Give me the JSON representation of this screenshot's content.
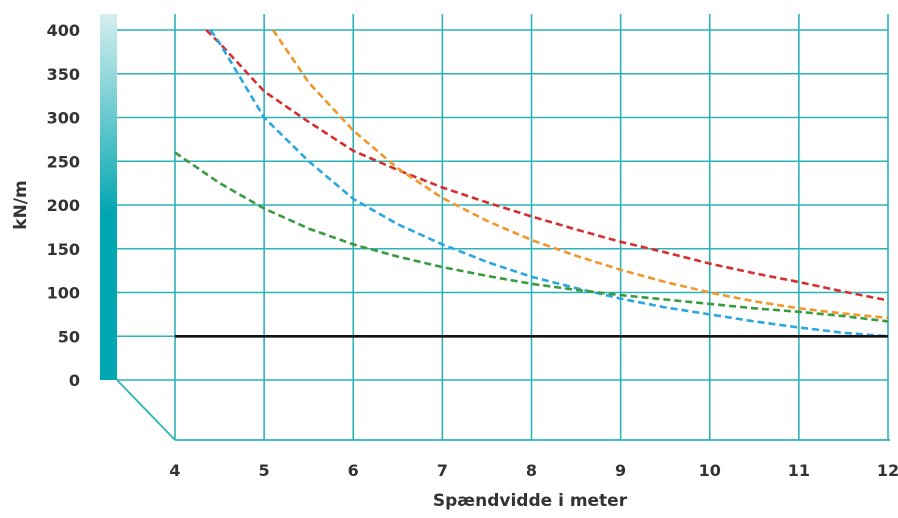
{
  "chart_data": {
    "type": "line",
    "title": "",
    "xlabel": "Spændvidde i meter",
    "ylabel": "kN/m",
    "xlim": [
      4,
      12
    ],
    "ylim": [
      0,
      400
    ],
    "x_ticks": [
      "4",
      "5",
      "6",
      "7",
      "8",
      "9",
      "10",
      "11",
      "12"
    ],
    "y_ticks": [
      "0",
      "50",
      "100",
      "150",
      "200",
      "250",
      "300",
      "350",
      "400"
    ],
    "grid": true,
    "legend": "none",
    "colors": {
      "grid": "#2bb3b8",
      "axis_bar_top": "#d6eef0",
      "axis_bar_bottom": "#00a6b0"
    },
    "series": [
      {
        "color": "#d62f2f",
        "dashed": true,
        "x": [
          4.35,
          4.5,
          5,
          5.5,
          6,
          6.5,
          7,
          7.5,
          8,
          8.5,
          9,
          9.5,
          10,
          10.5,
          11,
          11.5,
          12
        ],
        "y": [
          400,
          385,
          330,
          295,
          262,
          240,
          220,
          203,
          187,
          172,
          158,
          146,
          133,
          122,
          112,
          101,
          91
        ]
      },
      {
        "color": "#f0962a",
        "dashed": true,
        "x": [
          5.1,
          5.5,
          6,
          6.5,
          7,
          7.5,
          8,
          8.5,
          9,
          9.5,
          10,
          10.5,
          11,
          11.5,
          12
        ],
        "y": [
          400,
          340,
          285,
          242,
          208,
          182,
          160,
          142,
          126,
          112,
          100,
          90,
          82,
          76,
          71
        ]
      },
      {
        "color": "#2aa6e0",
        "dashed": true,
        "x": [
          4.4,
          4.5,
          5,
          5.5,
          6,
          6.5,
          7,
          7.5,
          8,
          8.5,
          9,
          9.5,
          10,
          10.5,
          11,
          11.5,
          12
        ],
        "y": [
          400,
          385,
          300,
          250,
          207,
          178,
          155,
          135,
          118,
          105,
          93,
          83,
          75,
          67,
          60,
          54,
          50
        ]
      },
      {
        "color": "#3a9b3e",
        "dashed": true,
        "x": [
          4,
          4.5,
          5,
          5.5,
          6,
          6.5,
          7,
          7.5,
          8,
          8.5,
          9,
          9.5,
          10,
          10.5,
          11,
          11.5,
          12
        ],
        "y": [
          260,
          225,
          196,
          173,
          155,
          141,
          129,
          119,
          110,
          103,
          97,
          92,
          87,
          82,
          78,
          73,
          67
        ]
      },
      {
        "color": "#111111",
        "dashed": false,
        "x": [
          4,
          12
        ],
        "y": [
          50,
          50
        ]
      }
    ]
  }
}
